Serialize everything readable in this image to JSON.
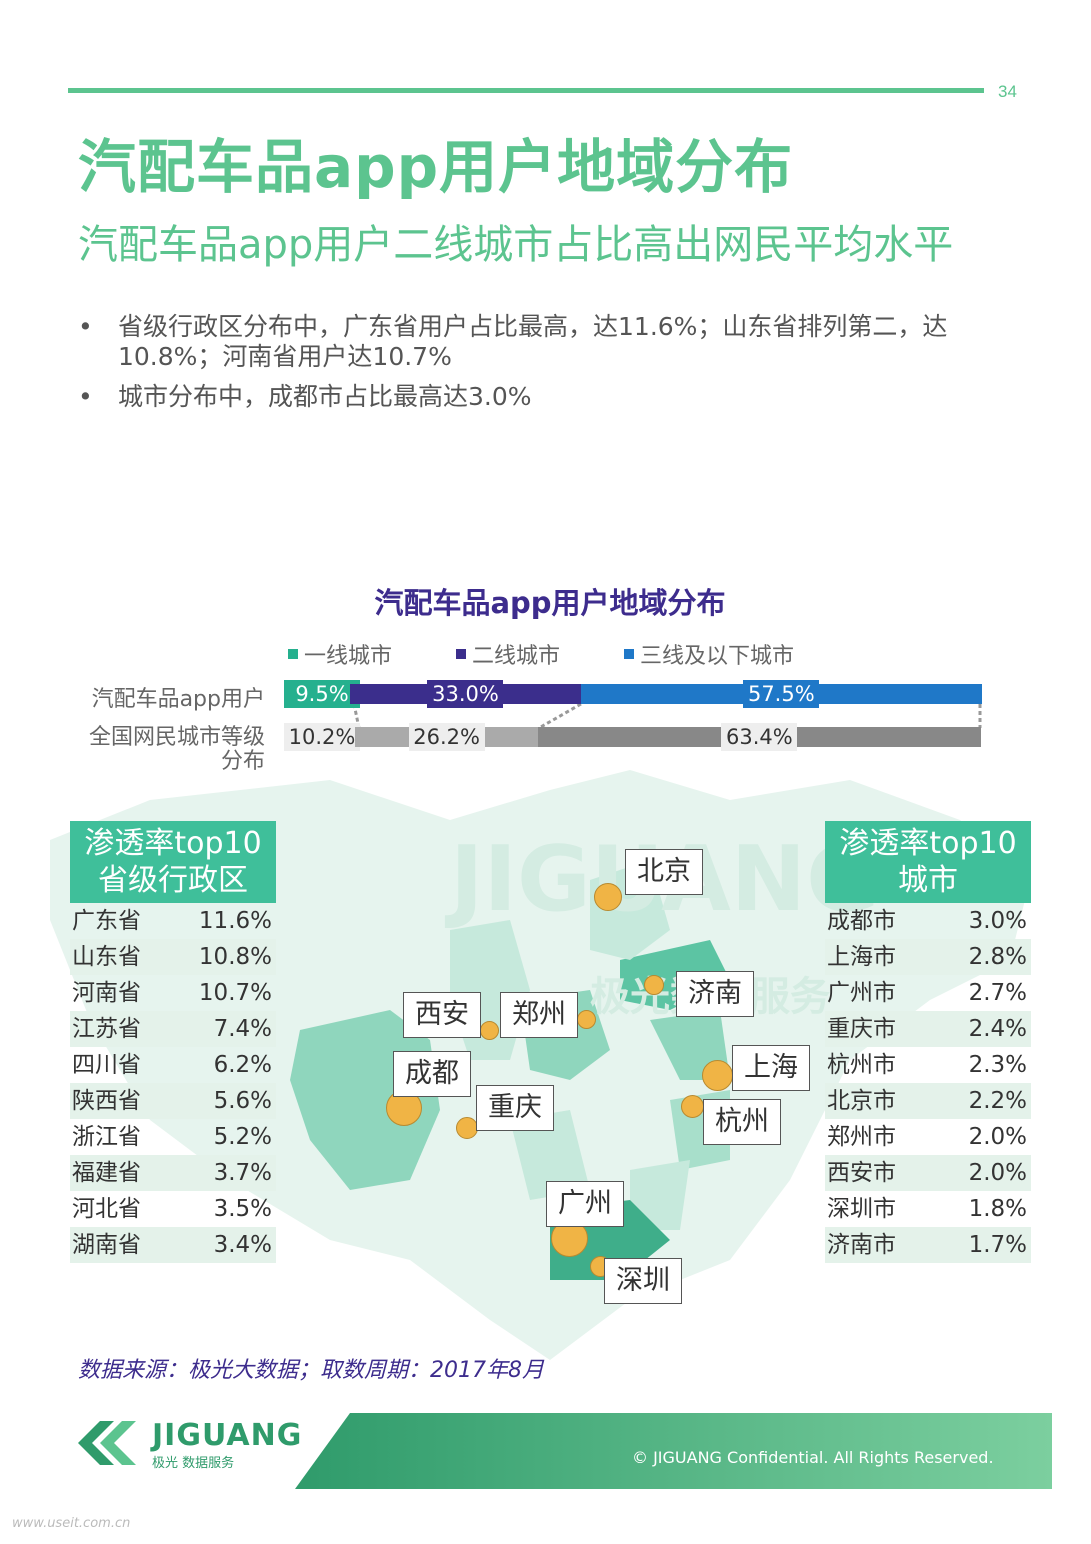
{
  "page_number": "34",
  "title": "汽配车品app用户地域分布",
  "subtitle": "汽配车品app用户二线城市占比高出网民平均水平",
  "bullets": [
    "省级行政区分布中，广东省用户占比最高，达11.6%；山东省排列第二，达10.8%；河南省用户达10.7%",
    "城市分布中，成都市占比最高达3.0%"
  ],
  "bullet_marker": "•",
  "chart_data": {
    "type": "bar",
    "orientation": "horizontal-stacked",
    "title": "汽配车品app用户地域分布",
    "legend": [
      "一线城市",
      "二线城市",
      "三线及以下城市"
    ],
    "colors": [
      "#25b08e",
      "#3b2e8c",
      "#1f78c8"
    ],
    "compare_colors": [
      "#c8c8c8",
      "#aaaaaa",
      "#888888"
    ],
    "categories": [
      "汽配车品app用户",
      "全国网民城市等级分布"
    ],
    "series": [
      {
        "name": "一线城市",
        "values": [
          9.5,
          10.2
        ],
        "labels": [
          "9.5%",
          "10.2%"
        ]
      },
      {
        "name": "二线城市",
        "values": [
          33.0,
          26.2
        ],
        "labels": [
          "33.0%",
          "26.2%"
        ]
      },
      {
        "name": "三线及以下城市",
        "values": [
          57.5,
          63.4
        ],
        "labels": [
          "57.5%",
          "63.4%"
        ]
      }
    ],
    "category_label_2_lines": [
      "全国网民城市等级",
      "分布"
    ]
  },
  "province_table": {
    "header_line1": "渗透率top10",
    "header_line2": "省级行政区",
    "rows": [
      {
        "name": "广东省",
        "value": "11.6%"
      },
      {
        "name": "山东省",
        "value": "10.8%"
      },
      {
        "name": "河南省",
        "value": "10.7%"
      },
      {
        "name": "江苏省",
        "value": "7.4%"
      },
      {
        "name": "四川省",
        "value": "6.2%"
      },
      {
        "name": "陕西省",
        "value": "5.6%"
      },
      {
        "name": "浙江省",
        "value": "5.2%"
      },
      {
        "name": "福建省",
        "value": "3.7%"
      },
      {
        "name": "河北省",
        "value": "3.5%"
      },
      {
        "name": "湖南省",
        "value": "3.4%"
      }
    ]
  },
  "city_table": {
    "header_line1": "渗透率top10",
    "header_line2": "城市",
    "rows": [
      {
        "name": "成都市",
        "value": "3.0%"
      },
      {
        "name": "上海市",
        "value": "2.8%"
      },
      {
        "name": "广州市",
        "value": "2.7%"
      },
      {
        "name": "重庆市",
        "value": "2.4%"
      },
      {
        "name": "杭州市",
        "value": "2.3%"
      },
      {
        "name": "北京市",
        "value": "2.2%"
      },
      {
        "name": "郑州市",
        "value": "2.0%"
      },
      {
        "name": "西安市",
        "value": "2.0%"
      },
      {
        "name": "深圳市",
        "value": "1.8%"
      },
      {
        "name": "济南市",
        "value": "1.7%"
      }
    ]
  },
  "map_cities": [
    "北京",
    "济南",
    "西安",
    "郑州",
    "成都",
    "重庆",
    "上海",
    "杭州",
    "广州",
    "深圳"
  ],
  "map_watermark": "JIGUANG",
  "map_watermark_cn": "极光数据服务",
  "source": "数据来源：极光大数据；取数周期：2017年8月",
  "logo_name": "JIGUANG",
  "logo_sub": "极光 数据服务",
  "footer": "© JIGUANG Confidential. All Rights Reserved.",
  "watermark_url": "www.useit.com.cn",
  "colors": {
    "brand_green": "#5cc48f",
    "chart_title": "#3d2c8d"
  }
}
